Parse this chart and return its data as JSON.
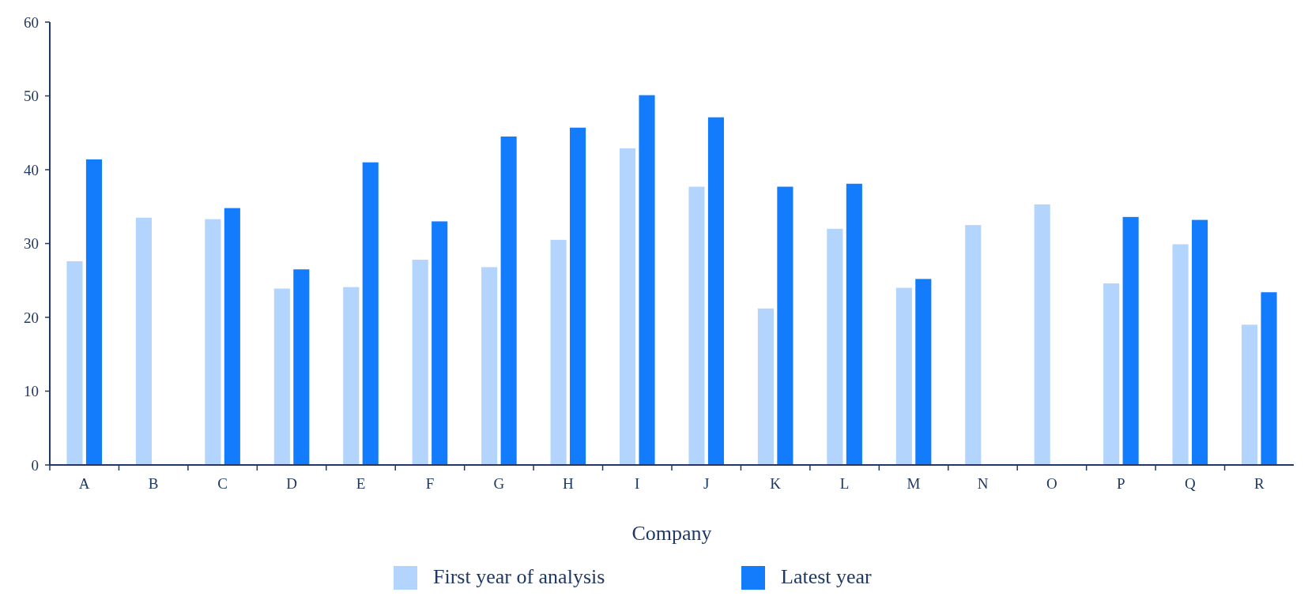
{
  "chart_data": {
    "type": "bar",
    "xlabel": "Company",
    "categories": [
      "A",
      "B",
      "C",
      "D",
      "E",
      "F",
      "G",
      "H",
      "I",
      "J",
      "K",
      "L",
      "M",
      "N",
      "O",
      "P",
      "Q",
      "R"
    ],
    "series": [
      {
        "name": "First year of analysis",
        "color": "#b3d4fc",
        "values": [
          27.6,
          33.5,
          33.3,
          23.9,
          24.1,
          27.8,
          26.8,
          30.5,
          42.9,
          37.7,
          21.2,
          32.0,
          24.0,
          32.5,
          35.3,
          24.6,
          29.9,
          19.0
        ]
      },
      {
        "name": "Latest year",
        "color": "#127cfc",
        "values": [
          41.4,
          null,
          34.8,
          26.5,
          41.0,
          33.0,
          44.5,
          45.7,
          50.1,
          47.1,
          37.7,
          38.1,
          25.2,
          null,
          null,
          33.6,
          33.2,
          23.4
        ]
      }
    ],
    "ylim": [
      0,
      60
    ],
    "yticks": [
      0,
      10,
      20,
      30,
      40,
      50,
      60
    ],
    "grid": false,
    "legend": "bottom"
  }
}
